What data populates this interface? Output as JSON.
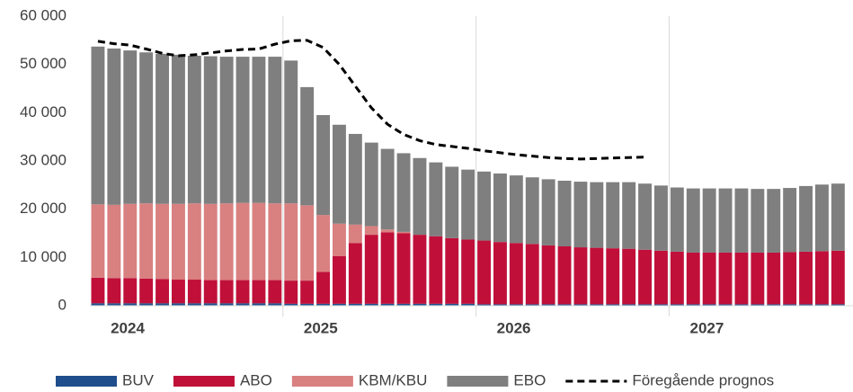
{
  "chart_data": {
    "type": "stacked-bar",
    "categories": [
      "2024",
      null,
      null,
      null,
      null,
      null,
      null,
      null,
      null,
      null,
      null,
      null,
      "2025",
      null,
      null,
      null,
      null,
      null,
      null,
      null,
      null,
      null,
      null,
      null,
      "2026",
      null,
      null,
      null,
      null,
      null,
      null,
      null,
      null,
      null,
      null,
      null,
      "2027",
      null,
      null,
      null,
      null,
      null,
      null,
      null,
      null,
      null,
      null
    ],
    "series": [
      {
        "name": "BUV",
        "color": "#1f4e8c",
        "values": [
          500,
          500,
          500,
          500,
          500,
          500,
          500,
          500,
          500,
          500,
          500,
          500,
          400,
          400,
          400,
          400,
          400,
          400,
          400,
          400,
          400,
          400,
          400,
          400,
          300,
          300,
          300,
          300,
          300,
          300,
          300,
          300,
          300,
          300,
          300,
          300,
          300,
          300,
          300,
          300,
          300,
          300,
          300,
          300,
          300,
          300,
          300
        ]
      },
      {
        "name": "ABO",
        "color": "#c0103a",
        "values": [
          5300,
          5200,
          5200,
          5100,
          5000,
          4900,
          4900,
          4800,
          4800,
          4800,
          4800,
          4800,
          4800,
          4800,
          6600,
          9900,
          12600,
          14300,
          14800,
          14600,
          14300,
          14000,
          13600,
          13300,
          13200,
          12900,
          12700,
          12500,
          12200,
          12000,
          11800,
          11700,
          11600,
          11500,
          11300,
          11100,
          10900,
          10700,
          10700,
          10700,
          10700,
          10700,
          10700,
          10800,
          10900,
          11000,
          11100
        ]
      },
      {
        "name": "KBM/KBU",
        "color": "#d98080",
        "values": [
          15200,
          15200,
          15400,
          15600,
          15600,
          15700,
          15800,
          15800,
          15900,
          16000,
          16000,
          15900,
          16000,
          15600,
          11800,
          6700,
          3800,
          1800,
          600,
          300,
          0,
          0,
          0,
          0,
          0,
          0,
          0,
          0,
          0,
          0,
          0,
          0,
          0,
          0,
          0,
          0,
          0,
          0,
          0,
          0,
          0,
          0,
          0,
          0,
          0,
          0,
          0
        ]
      },
      {
        "name": "EBO",
        "color": "#7f7f7f",
        "values": [
          32700,
          32400,
          31800,
          31300,
          31100,
          30900,
          30600,
          30600,
          30400,
          30300,
          30300,
          30400,
          29600,
          24500,
          20700,
          20500,
          18800,
          17300,
          16700,
          16300,
          15900,
          15300,
          14800,
          14500,
          14300,
          14200,
          14000,
          13800,
          13700,
          13600,
          13600,
          13600,
          13700,
          13800,
          13700,
          13500,
          13300,
          13300,
          13300,
          13300,
          13300,
          13200,
          13200,
          13300,
          13600,
          13800,
          13900
        ]
      }
    ],
    "line": {
      "name": "Föregående prognos",
      "color": "#000000",
      "values": [
        54800,
        54300,
        54000,
        53200,
        52300,
        51800,
        52000,
        52400,
        52800,
        53100,
        53200,
        54200,
        54900,
        55000,
        53500,
        50000,
        45500,
        41000,
        37600,
        35500,
        34200,
        33400,
        33000,
        32600,
        32100,
        31700,
        31300,
        31000,
        30700,
        30500,
        30400,
        30500,
        30600,
        30700,
        30800,
        null,
        null,
        null,
        null,
        null,
        null,
        null,
        null,
        null,
        null,
        null,
        null
      ]
    },
    "ylim": [
      0,
      60000
    ],
    "yticks": [
      0,
      {
        "value": 10000,
        "label": "10 000"
      },
      {
        "value": 20000,
        "label": "20 000"
      },
      {
        "value": 30000,
        "label": "30 000"
      },
      {
        "value": 40000,
        "label": "40 000"
      },
      {
        "value": 50000,
        "label": "50 000"
      },
      {
        "value": 60000,
        "label": "60 000"
      }
    ]
  }
}
